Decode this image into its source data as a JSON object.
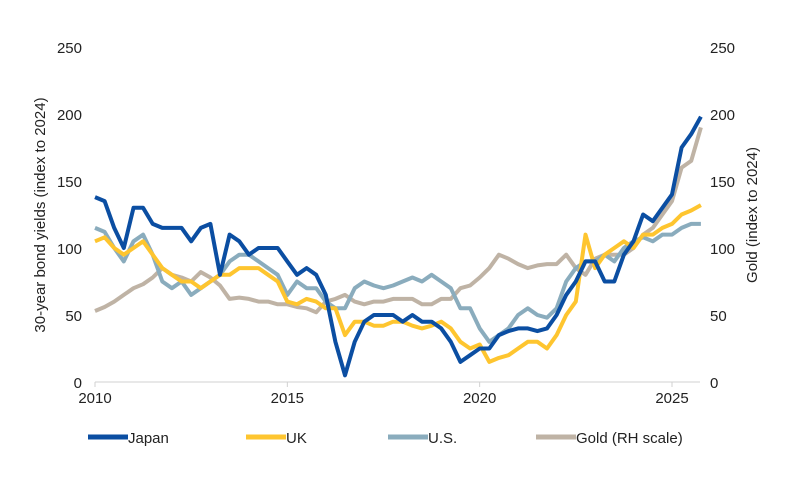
{
  "chart_data": {
    "type": "line",
    "title": "",
    "xlabel": "",
    "ylabel": "30-year bond yields (index to 2024)",
    "y2label": "Gold (index to 2024)",
    "xlim": [
      2010,
      2025.8
    ],
    "ylim": [
      0,
      250
    ],
    "y2lim": [
      0,
      250
    ],
    "x_ticks": [
      2010,
      2015,
      2020,
      2025
    ],
    "y_ticks": [
      0,
      50,
      100,
      150,
      200,
      250
    ],
    "y2_ticks": [
      0,
      50,
      100,
      150,
      200,
      250
    ],
    "grid": false,
    "legend_position": "bottom",
    "x": [
      2010,
      2010.25,
      2010.5,
      2010.75,
      2011,
      2011.25,
      2011.5,
      2011.75,
      2012,
      2012.25,
      2012.5,
      2012.75,
      2013,
      2013.25,
      2013.5,
      2013.75,
      2014,
      2014.25,
      2014.5,
      2014.75,
      2015,
      2015.25,
      2015.5,
      2015.75,
      2016,
      2016.25,
      2016.5,
      2016.75,
      2017,
      2017.25,
      2017.5,
      2017.75,
      2018,
      2018.25,
      2018.5,
      2018.75,
      2019,
      2019.25,
      2019.5,
      2019.75,
      2020,
      2020.25,
      2020.5,
      2020.75,
      2021,
      2021.25,
      2021.5,
      2021.75,
      2022,
      2022.25,
      2022.5,
      2022.75,
      2023,
      2023.25,
      2023.5,
      2023.75,
      2024,
      2024.25,
      2024.5,
      2024.75,
      2025,
      2025.25,
      2025.5,
      2025.75
    ],
    "series": [
      {
        "name": "Japan",
        "color": "#0b4ea2",
        "axis": "left",
        "values": [
          138,
          135,
          115,
          100,
          130,
          130,
          118,
          115,
          115,
          115,
          105,
          115,
          118,
          80,
          110,
          105,
          95,
          100,
          100,
          100,
          90,
          80,
          85,
          80,
          65,
          30,
          5,
          30,
          45,
          50,
          50,
          50,
          45,
          50,
          45,
          45,
          40,
          30,
          15,
          20,
          25,
          25,
          35,
          38,
          40,
          40,
          38,
          40,
          50,
          65,
          75,
          90,
          90,
          75,
          75,
          95,
          105,
          125,
          120,
          130,
          140,
          175,
          185,
          198
        ]
      },
      {
        "name": "UK",
        "color": "#fec52f",
        "axis": "left",
        "values": [
          105,
          108,
          100,
          95,
          100,
          105,
          95,
          85,
          80,
          75,
          75,
          70,
          75,
          80,
          80,
          85,
          85,
          85,
          80,
          75,
          60,
          58,
          62,
          60,
          55,
          55,
          35,
          45,
          45,
          42,
          42,
          45,
          45,
          42,
          40,
          42,
          45,
          40,
          30,
          25,
          28,
          15,
          18,
          20,
          25,
          30,
          30,
          25,
          35,
          50,
          60,
          110,
          85,
          95,
          100,
          105,
          100,
          110,
          110,
          115,
          118,
          125,
          128,
          132
        ]
      },
      {
        "name": "U.S.",
        "color": "#8aacbd",
        "axis": "left",
        "values": [
          115,
          112,
          100,
          90,
          105,
          110,
          95,
          75,
          70,
          75,
          65,
          70,
          75,
          80,
          90,
          95,
          95,
          90,
          85,
          80,
          65,
          75,
          70,
          70,
          60,
          55,
          55,
          70,
          75,
          72,
          70,
          72,
          75,
          78,
          75,
          80,
          75,
          70,
          55,
          55,
          40,
          30,
          35,
          40,
          50,
          55,
          50,
          48,
          55,
          75,
          85,
          90,
          90,
          95,
          90,
          100,
          105,
          108,
          105,
          110,
          110,
          115,
          118,
          118
        ]
      },
      {
        "name": "Gold (RH scale)",
        "color": "#bfb3a5",
        "axis": "right",
        "values": [
          53,
          56,
          60,
          65,
          70,
          73,
          78,
          85,
          80,
          78,
          75,
          82,
          78,
          72,
          62,
          63,
          62,
          60,
          60,
          58,
          58,
          56,
          55,
          52,
          60,
          62,
          65,
          60,
          58,
          60,
          60,
          62,
          62,
          62,
          58,
          58,
          62,
          62,
          70,
          72,
          78,
          85,
          95,
          92,
          88,
          85,
          87,
          88,
          88,
          95,
          85,
          80,
          92,
          95,
          95,
          95,
          100,
          110,
          115,
          125,
          135,
          160,
          165,
          190
        ]
      }
    ]
  }
}
